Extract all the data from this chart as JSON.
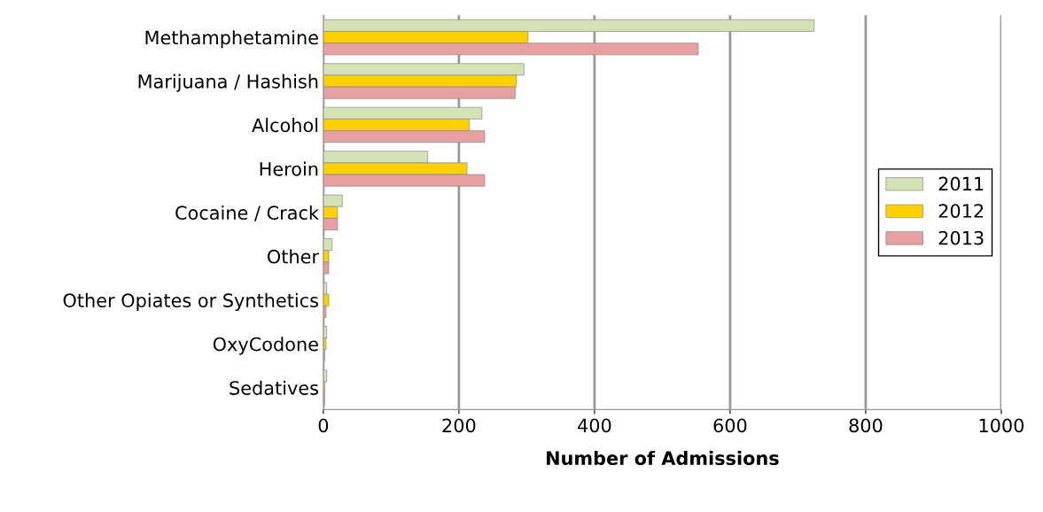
{
  "chart_data": {
    "type": "bar",
    "orientation": "horizontal",
    "xlabel": "Number of Admissions",
    "categories": [
      "Methamphetamine",
      "Marijuana / Hashish",
      "Alcohol",
      "Heroin",
      "Cocaine / Crack",
      "Other",
      "Other Opiates or Synthetics",
      "OxyCodone",
      "Sedatives"
    ],
    "series": [
      {
        "name": "2011",
        "color": "#d4e3b5",
        "values": [
          724,
          296,
          234,
          154,
          28,
          13,
          5,
          5,
          5
        ]
      },
      {
        "name": "2012",
        "color": "#ffd000",
        "values": [
          302,
          285,
          215,
          212,
          21,
          8,
          8,
          4,
          2
        ]
      },
      {
        "name": "2013",
        "color": "#e6a0a0",
        "values": [
          553,
          283,
          238,
          238,
          21,
          8,
          4,
          2,
          2
        ]
      }
    ],
    "xlim": [
      0,
      1000
    ],
    "xticks": [
      0,
      200,
      400,
      600,
      800,
      1000
    ],
    "grid": "x",
    "legend": "right"
  }
}
